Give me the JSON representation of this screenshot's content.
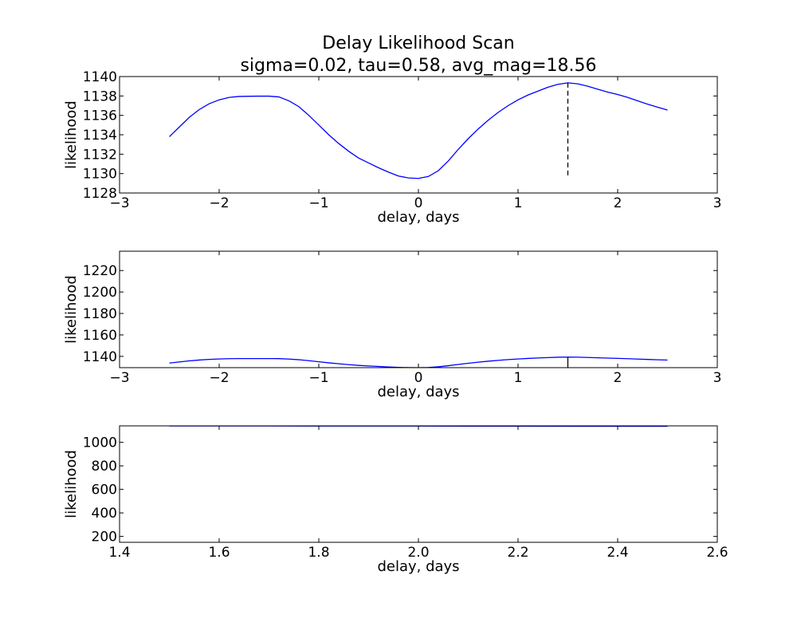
{
  "figure": {
    "title_line1": "Delay Likelihood Scan",
    "title_line2": "sigma=0.02, tau=0.58, avg_mag=18.56"
  },
  "colors": {
    "series": "#0000ff",
    "marker": "#000000",
    "axes": "#000000",
    "background": "#ffffff"
  },
  "chart_data": [
    {
      "type": "line",
      "xlabel": "delay, days",
      "ylabel": "likelihood",
      "xlim": [
        -3,
        3
      ],
      "ylim": [
        1128,
        1140
      ],
      "xticks": [
        -3,
        -2,
        -1,
        0,
        1,
        2,
        3
      ],
      "xtick_labels": [
        "−3",
        "−2",
        "−1",
        "0",
        "1",
        "2",
        "3"
      ],
      "yticks": [
        1128,
        1130,
        1132,
        1134,
        1136,
        1138,
        1140
      ],
      "ytick_labels": [
        "1128",
        "1130",
        "1132",
        "1134",
        "1136",
        "1138",
        "1140"
      ],
      "grid": false,
      "series": [
        {
          "x": [
            -2.5,
            -2.4,
            -2.3,
            -2.2,
            -2.1,
            -2.0,
            -1.9,
            -1.8,
            -1.7,
            -1.6,
            -1.5,
            -1.4,
            -1.3,
            -1.2,
            -1.1,
            -1.0,
            -0.9,
            -0.8,
            -0.7,
            -0.6,
            -0.5,
            -0.4,
            -0.3,
            -0.2,
            -0.1,
            0.0,
            0.1,
            0.2,
            0.3,
            0.4,
            0.5,
            0.6,
            0.7,
            0.8,
            0.9,
            1.0,
            1.1,
            1.2,
            1.3,
            1.4,
            1.5,
            1.6,
            1.7,
            1.8,
            1.9,
            2.0,
            2.1,
            2.2,
            2.3,
            2.4,
            2.5
          ],
          "y": [
            1133.8,
            1134.8,
            1135.8,
            1136.6,
            1137.2,
            1137.6,
            1137.85,
            1137.95,
            1137.97,
            1137.98,
            1137.98,
            1137.9,
            1137.5,
            1136.9,
            1136.0,
            1135.0,
            1134.0,
            1133.1,
            1132.3,
            1131.6,
            1131.1,
            1130.6,
            1130.15,
            1129.75,
            1129.55,
            1129.5,
            1129.7,
            1130.3,
            1131.3,
            1132.5,
            1133.6,
            1134.6,
            1135.5,
            1136.3,
            1137.0,
            1137.6,
            1138.1,
            1138.5,
            1138.9,
            1139.2,
            1139.35,
            1139.25,
            1139.0,
            1138.7,
            1138.4,
            1138.15,
            1137.85,
            1137.5,
            1137.15,
            1136.85,
            1136.55
          ]
        }
      ],
      "vline": {
        "x": 1.5,
        "ymin": 1129.5,
        "ymax": 1139.35,
        "style": "dashed"
      }
    },
    {
      "type": "line",
      "xlabel": "delay, days",
      "ylabel": "likelihood",
      "xlim": [
        -3,
        3
      ],
      "ylim": [
        1129.5,
        1238
      ],
      "xticks": [
        -3,
        -2,
        -1,
        0,
        1,
        2,
        3
      ],
      "xtick_labels": [
        "−3",
        "−2",
        "−1",
        "0",
        "1",
        "2",
        "3"
      ],
      "yticks": [
        1140,
        1160,
        1180,
        1200,
        1220
      ],
      "ytick_labels": [
        "1140",
        "1160",
        "1180",
        "1200",
        "1220"
      ],
      "grid": false,
      "series": [
        {
          "x": [
            -2.5,
            -2.4,
            -2.3,
            -2.2,
            -2.1,
            -2.0,
            -1.9,
            -1.8,
            -1.7,
            -1.6,
            -1.5,
            -1.4,
            -1.3,
            -1.2,
            -1.1,
            -1.0,
            -0.9,
            -0.8,
            -0.7,
            -0.6,
            -0.5,
            -0.4,
            -0.3,
            -0.2,
            -0.1,
            0.0,
            0.1,
            0.2,
            0.3,
            0.4,
            0.5,
            0.6,
            0.7,
            0.8,
            0.9,
            1.0,
            1.1,
            1.2,
            1.3,
            1.4,
            1.5,
            1.6,
            1.7,
            1.8,
            1.9,
            2.0,
            2.1,
            2.2,
            2.3,
            2.4,
            2.5
          ],
          "y": [
            1133.8,
            1134.8,
            1135.8,
            1136.6,
            1137.2,
            1137.6,
            1137.85,
            1137.95,
            1137.97,
            1137.98,
            1137.98,
            1137.9,
            1137.5,
            1136.9,
            1136.0,
            1135.0,
            1134.0,
            1133.1,
            1132.3,
            1131.6,
            1131.1,
            1130.6,
            1130.15,
            1129.75,
            1129.55,
            1129.5,
            1129.7,
            1130.3,
            1131.3,
            1132.5,
            1133.6,
            1134.6,
            1135.5,
            1136.3,
            1137.0,
            1137.6,
            1138.1,
            1138.5,
            1138.9,
            1139.2,
            1139.35,
            1139.25,
            1139.0,
            1138.7,
            1138.4,
            1138.15,
            1137.85,
            1137.5,
            1137.15,
            1136.85,
            1136.55
          ]
        }
      ],
      "vline": {
        "x": 1.5,
        "ymin": 1129.5,
        "ymax": 1139.35,
        "style": "solid"
      }
    },
    {
      "type": "line",
      "xlabel": "delay, days",
      "ylabel": "likelihood",
      "xlim": [
        1.4,
        2.6
      ],
      "ylim": [
        150,
        1140
      ],
      "xticks": [
        1.4,
        1.6,
        1.8,
        2.0,
        2.2,
        2.4,
        2.6
      ],
      "xtick_labels": [
        "1.4",
        "1.6",
        "1.8",
        "2.0",
        "2.2",
        "2.4",
        "2.6"
      ],
      "yticks": [
        200,
        400,
        600,
        800,
        1000
      ],
      "ytick_labels": [
        "200",
        "400",
        "600",
        "800",
        "1000"
      ],
      "grid": false,
      "series": [
        {
          "x": [
            1.5,
            1.6,
            1.7,
            1.8,
            1.9,
            2.0,
            2.1,
            2.2,
            2.3,
            2.4,
            2.5
          ],
          "y": [
            1139.35,
            1139.25,
            1139.0,
            1138.7,
            1138.4,
            1138.15,
            1137.85,
            1137.5,
            1137.15,
            1136.85,
            1136.55
          ]
        }
      ]
    }
  ]
}
